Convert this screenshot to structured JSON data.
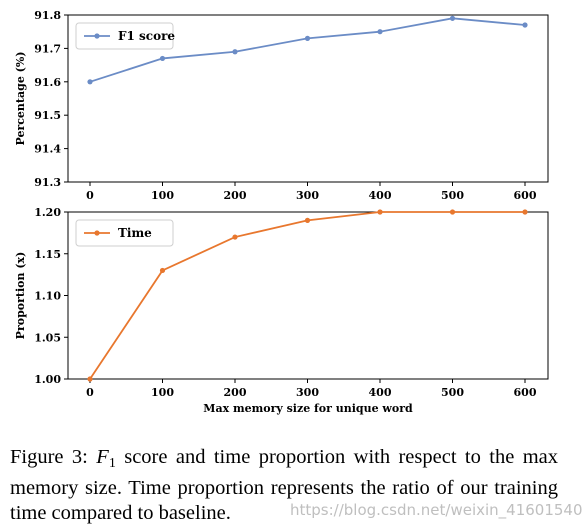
{
  "chart_data": [
    {
      "type": "line",
      "x": [
        0,
        100,
        200,
        300,
        400,
        500,
        600
      ],
      "series": [
        {
          "name": "F1 score",
          "values": [
            91.6,
            91.67,
            91.69,
            91.73,
            91.75,
            91.79,
            91.77
          ],
          "color": "#6b8cc6"
        }
      ],
      "xlabel": "",
      "ylabel": "Percentage (%)",
      "ylim": [
        91.3,
        91.8
      ],
      "yticks": [
        "91.3",
        "91.4",
        "91.5",
        "91.6",
        "91.7",
        "91.8"
      ],
      "xticks": [
        "0",
        "100",
        "200",
        "300",
        "400",
        "500",
        "600"
      ],
      "legend": "top-left",
      "grid": false
    },
    {
      "type": "line",
      "x": [
        0,
        100,
        200,
        300,
        400,
        500,
        600
      ],
      "series": [
        {
          "name": "Time",
          "values": [
            1.0,
            1.13,
            1.17,
            1.19,
            1.2,
            1.2,
            1.2
          ],
          "color": "#e8772e"
        }
      ],
      "xlabel": "Max memory size for unique word",
      "ylabel": "Proportion (x)",
      "ylim": [
        1.0,
        1.2
      ],
      "yticks": [
        "1.00",
        "1.05",
        "1.10",
        "1.15",
        "1.20"
      ],
      "xticks": [
        "0",
        "100",
        "200",
        "300",
        "400",
        "500",
        "600"
      ],
      "legend": "top-left",
      "grid": false
    }
  ],
  "caption": {
    "prefix": "Figure 3: ",
    "symbol": "F",
    "subscript": "1",
    "rest": " score and time proportion with respect to the max memory size. Time proportion represents the ratio of our training time compared to baseline."
  },
  "watermark": "https://blog.csdn.net/weixin_41601540"
}
